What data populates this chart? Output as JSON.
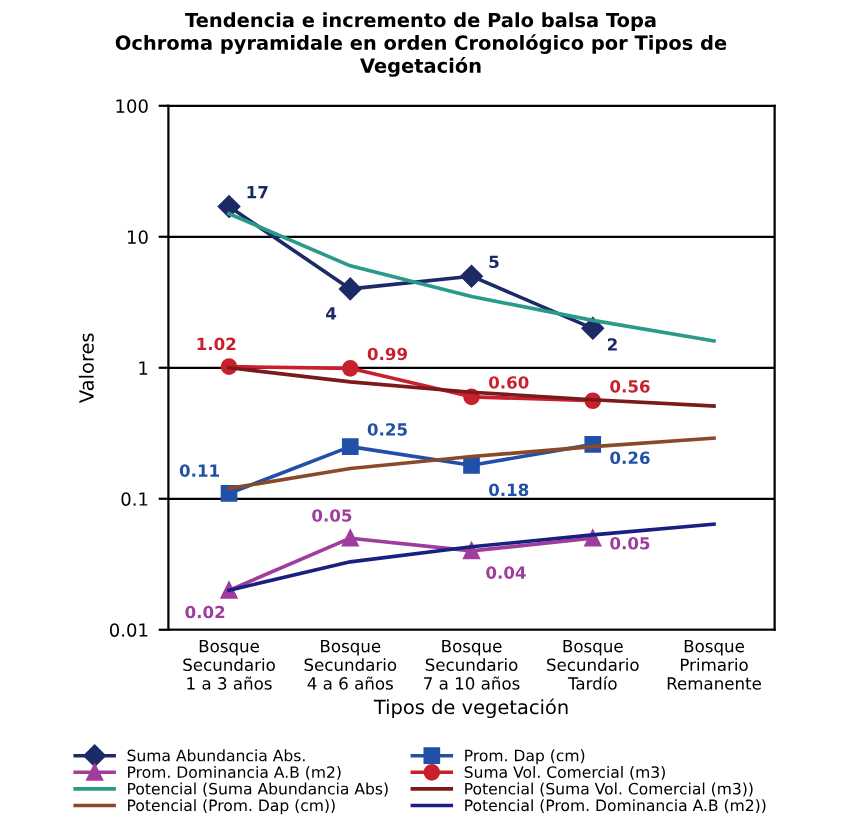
{
  "chart_data": {
    "type": "line",
    "title": "Tendencia e incremento de Palo balsa Topa\nOchroma pyramidale en orden Cronológico por Tipos de\nVegetación",
    "xlabel": "Tipos de vegetación",
    "ylabel": "Valores",
    "categories": [
      "Bosque\nSecundario\n1 a 3 años",
      "Bosque\nSecundario\n4 a 6 años",
      "Bosque\nSecundario\n7 a 10 años",
      "Bosque\nSecundario\nTardío",
      "Bosque\nPrimario\nRemanente"
    ],
    "log": true,
    "ylim": [
      0.01,
      100
    ],
    "yticks": [
      0.01,
      0.1,
      1,
      10,
      100
    ],
    "grid": "y",
    "legend": "bottom",
    "series": [
      {
        "name": "Suma Abundancia Abs.",
        "color": "#1c2b66",
        "marker": "diamond",
        "values": [
          17,
          4,
          5,
          2,
          null
        ],
        "value_labels": [
          "17",
          "4",
          "5",
          "2",
          null
        ]
      },
      {
        "name": "Prom. Dominancia A.B (m2)",
        "color": "#a03c9c",
        "marker": "triangle",
        "values": [
          0.02,
          0.05,
          0.04,
          0.05,
          null
        ],
        "value_labels": [
          "0.02",
          "0.05",
          "0.04",
          "0.05",
          null
        ]
      },
      {
        "name": "Potencial (Suma Abundancia Abs)",
        "color": "#2a9a8a",
        "marker": "none",
        "values": [
          15,
          6,
          3.5,
          2.3,
          1.6
        ]
      },
      {
        "name": "Potencial (Prom. Dap (cm))",
        "color": "#8a4a2a",
        "marker": "none",
        "values": [
          0.12,
          0.17,
          0.21,
          0.25,
          0.29
        ]
      },
      {
        "name": "Prom. Dap (cm)",
        "color": "#2050a8",
        "marker": "square",
        "values": [
          0.11,
          0.25,
          0.18,
          0.26,
          null
        ],
        "value_labels": [
          "0.11",
          "0.25",
          "0.18",
          "0.26",
          null
        ]
      },
      {
        "name": "Suma Vol. Comercial (m3)",
        "color": "#c8202c",
        "marker": "circle",
        "values": [
          1.02,
          0.99,
          0.6,
          0.56,
          null
        ],
        "value_labels": [
          "1.02",
          "0.99",
          "0.60",
          "0.56",
          null
        ]
      },
      {
        "name": "Potencial (Suma Vol. Comercial (m3))",
        "color": "#7a1a1a",
        "marker": "none",
        "values": [
          1.0,
          0.78,
          0.65,
          0.57,
          0.51
        ]
      },
      {
        "name": "Potencial (Prom. Dominancia A.B (m2))",
        "color": "#1a2080",
        "marker": "none",
        "values": [
          0.02,
          0.033,
          0.043,
          0.053,
          0.064
        ]
      }
    ]
  }
}
